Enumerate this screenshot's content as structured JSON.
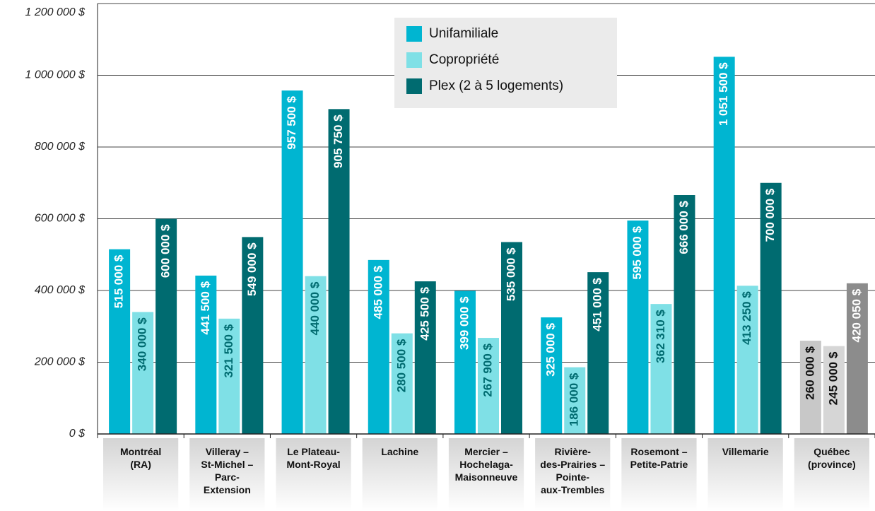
{
  "chart_data": {
    "type": "bar",
    "categories": [
      "Montréal\n(RA)",
      "Villeray –\nSt-Michel –\nParc-\nExtension",
      "Le Plateau-\nMont-Royal",
      "Lachine",
      "Mercier –\nHochelaga-\nMaisonneuve",
      "Rivière-\ndes-Prairies –\nPointe-\naux-Trembles",
      "Rosemont –\nPetite-Patrie",
      "Villemarie",
      "Québec\n(province)"
    ],
    "series": [
      {
        "name": "Unifamiliale",
        "color": "#00b5d1",
        "colors": [
          "#00b5d1",
          "#00b5d1",
          "#00b5d1",
          "#00b5d1",
          "#00b5d1",
          "#00b5d1",
          "#00b5d1",
          "#00b5d1",
          "#c8c8c8"
        ],
        "values": [
          515000,
          441500,
          957500,
          485000,
          399000,
          325000,
          595000,
          1051500,
          260000
        ],
        "value_labels": [
          "515 000 $",
          "441 500 $",
          "957 500 $",
          "485 000 $",
          "399 000 $",
          "325 000 $",
          "595 000 $",
          "1 051 500 $",
          "260 000 $"
        ]
      },
      {
        "name": "Copropriété",
        "color": "#7fe0e6",
        "colors": [
          "#7fe0e6",
          "#7fe0e6",
          "#7fe0e6",
          "#7fe0e6",
          "#7fe0e6",
          "#7fe0e6",
          "#7fe0e6",
          "#7fe0e6",
          "#d6d6d6"
        ],
        "values": [
          340000,
          321500,
          440000,
          280500,
          267900,
          186000,
          362310,
          413250,
          245000
        ],
        "value_labels": [
          "340 000 $",
          "321 500 $",
          "440 000 $",
          "280 500 $",
          "267 900 $",
          "186 000 $",
          "362 310 $",
          "413 250 $",
          "245 000 $"
        ]
      },
      {
        "name": "Plex (2 à 5 logements)",
        "color": "#006b70",
        "colors": [
          "#006b70",
          "#006b70",
          "#006b70",
          "#006b70",
          "#006b70",
          "#006b70",
          "#006b70",
          "#006b70",
          "#8c8c8c"
        ],
        "values": [
          600000,
          549000,
          905750,
          425500,
          535000,
          451000,
          666000,
          700000,
          420050
        ],
        "value_labels": [
          "600 000 $",
          "549 000 $",
          "905 750 $",
          "425 500 $",
          "535 000 $",
          "451 000 $",
          "666 000 $",
          "700 000 $",
          "420 050 $"
        ]
      }
    ],
    "ylim": [
      0,
      1200000
    ],
    "yticks": [
      {
        "value": 0,
        "label": "0 $"
      },
      {
        "value": 200000,
        "label": "200 000 $"
      },
      {
        "value": 400000,
        "label": "400 000 $"
      },
      {
        "value": 600000,
        "label": "600 000 $"
      },
      {
        "value": 800000,
        "label": "800 000 $"
      },
      {
        "value": 1000000,
        "label": "1 000 000 $"
      },
      {
        "value": 1200000,
        "label": "1 200 000 $"
      }
    ],
    "grid": true
  }
}
